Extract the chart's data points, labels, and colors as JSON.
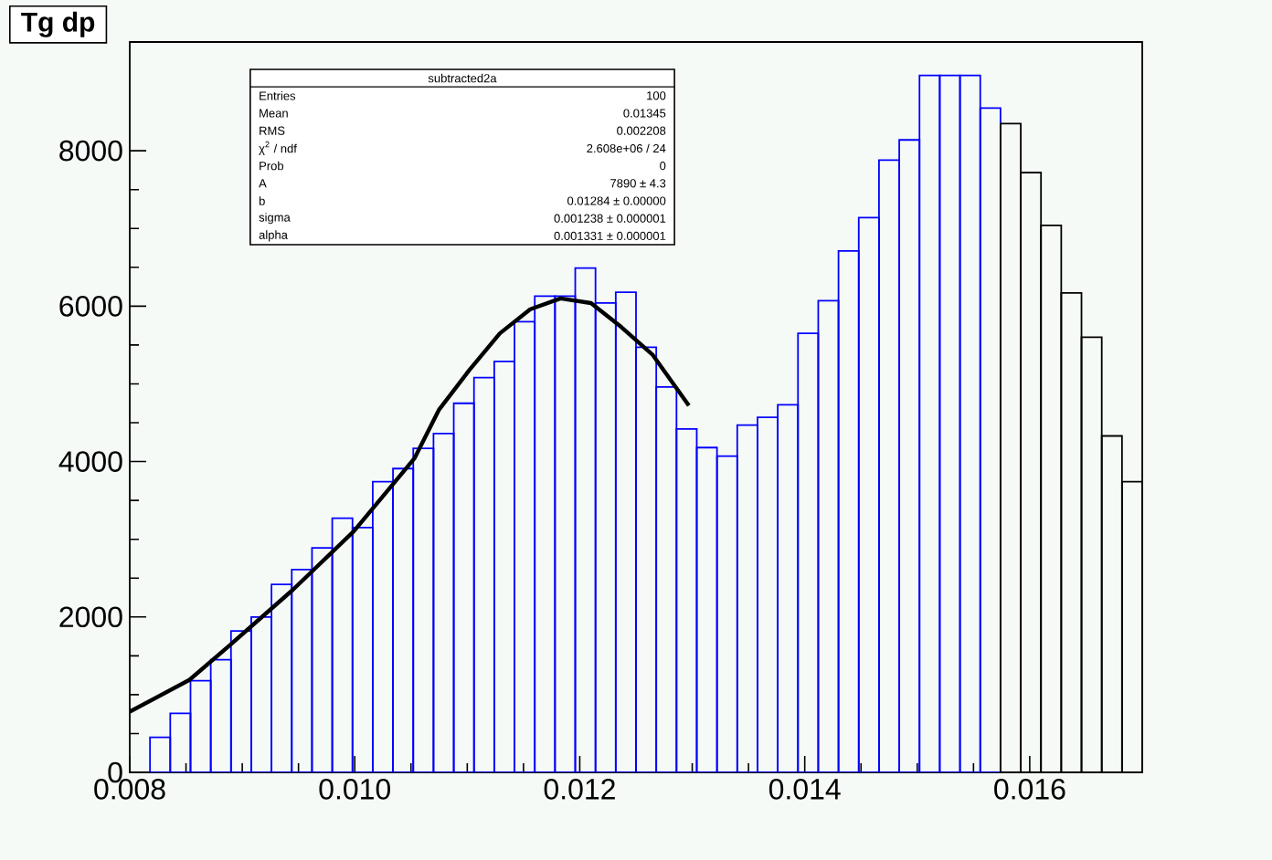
{
  "chart_data": {
    "type": "histogram",
    "title": "Tg dp",
    "bins": [
      0.00818,
      0.00836,
      0.00854,
      0.00872,
      0.0089,
      0.00908,
      0.00926,
      0.00944,
      0.00962,
      0.0098,
      0.00998,
      0.01016,
      0.01034,
      0.01052,
      0.0107,
      0.01088,
      0.01106,
      0.01124,
      0.01142,
      0.0116,
      0.01178,
      0.01196,
      0.01214,
      0.01232,
      0.0125,
      0.01268,
      0.01286,
      0.01304,
      0.01322,
      0.0134,
      0.01358,
      0.01376,
      0.01394,
      0.01412,
      0.0143,
      0.01448,
      0.01466,
      0.01484,
      0.01502,
      0.0152,
      0.01538,
      0.01556,
      0.01574,
      0.01592,
      0.0161,
      0.01628,
      0.01646,
      0.01664,
      0.01682,
      0.017
    ],
    "series": [
      {
        "colors": [
          "#0000ff",
          "#0000ff",
          "#0000ff",
          "#0000ff",
          "#0000ff",
          "#0000ff",
          "#0000ff",
          "#0000ff",
          "#0000ff",
          "#0000ff",
          "#0000ff",
          "#0000ff",
          "#0000ff",
          "#0000ff",
          "#0000ff",
          "#0000ff",
          "#0000ff",
          "#0000ff",
          "#0000ff",
          "#0000ff",
          "#0000ff",
          "#0000ff",
          "#0000ff",
          "#0000ff",
          "#0000ff",
          "#0000ff",
          "#0000ff",
          "#0000ff",
          "#0000ff",
          "#0000ff",
          "#0000ff",
          "#0000ff",
          "#0000ff",
          "#0000ff",
          "#0000ff",
          "#0000ff",
          "#0000ff",
          "#0000ff",
          "#0000ff",
          "#0000ff",
          "#0000ff",
          "#0000ff",
          "#000000",
          "#000000",
          "#000000",
          "#000000",
          "#000000",
          "#000000",
          "#000000"
        ],
        "values": [
          450,
          760,
          1180,
          1450,
          1820,
          2000,
          2420,
          2610,
          2890,
          3270,
          3150,
          3740,
          3910,
          4170,
          4360,
          4750,
          5080,
          5290,
          5800,
          6130,
          6130,
          6490,
          6040,
          6180,
          5470,
          4960,
          4420,
          4180,
          4070,
          4470,
          4570,
          4730,
          5650,
          6070,
          6710,
          7140,
          7880,
          8140,
          8970,
          8970,
          8970,
          8550,
          8350,
          7720,
          7040,
          6170,
          5600,
          4330,
          3740
        ]
      },
      {
        "type": "line",
        "color": "#000000",
        "x": [
          0.008,
          0.00853,
          0.0089,
          0.00945,
          0.00999,
          0.01053,
          0.01075,
          0.01102,
          0.01129,
          0.01156,
          0.01183,
          0.0121,
          0.01237,
          0.01265,
          0.01297
        ],
        "values": [
          780,
          1190,
          1650,
          2350,
          3100,
          4040,
          4670,
          5180,
          5650,
          5960,
          6100,
          6040,
          5730,
          5370,
          4720
        ]
      }
    ],
    "xlim": [
      0.008,
      0.017
    ],
    "xticks": [
      {
        "value": 0.008,
        "label": "0.008"
      },
      {
        "value": 0.01,
        "label": "0.010"
      },
      {
        "value": 0.012,
        "label": "0.012"
      },
      {
        "value": 0.014,
        "label": "0.014"
      },
      {
        "value": 0.016,
        "label": "0.016"
      }
    ],
    "ylim": [
      0,
      9400
    ],
    "yticks": [
      0,
      2000,
      4000,
      6000,
      8000
    ],
    "annotations": [
      "subtracted2a",
      "Entries",
      "100",
      "Mean",
      "0.01345",
      "RMS",
      "0.002208",
      "χ$^{2}$ / ndf",
      "2.608e+06 / 24",
      "Prob",
      "0",
      "A",
      "7890 ± 4.3",
      "b",
      "0.01284 ± 0.00000",
      "sigma",
      "0.001238 ± 0.000001",
      "alpha",
      "0.001331 ± 0.000001"
    ]
  }
}
